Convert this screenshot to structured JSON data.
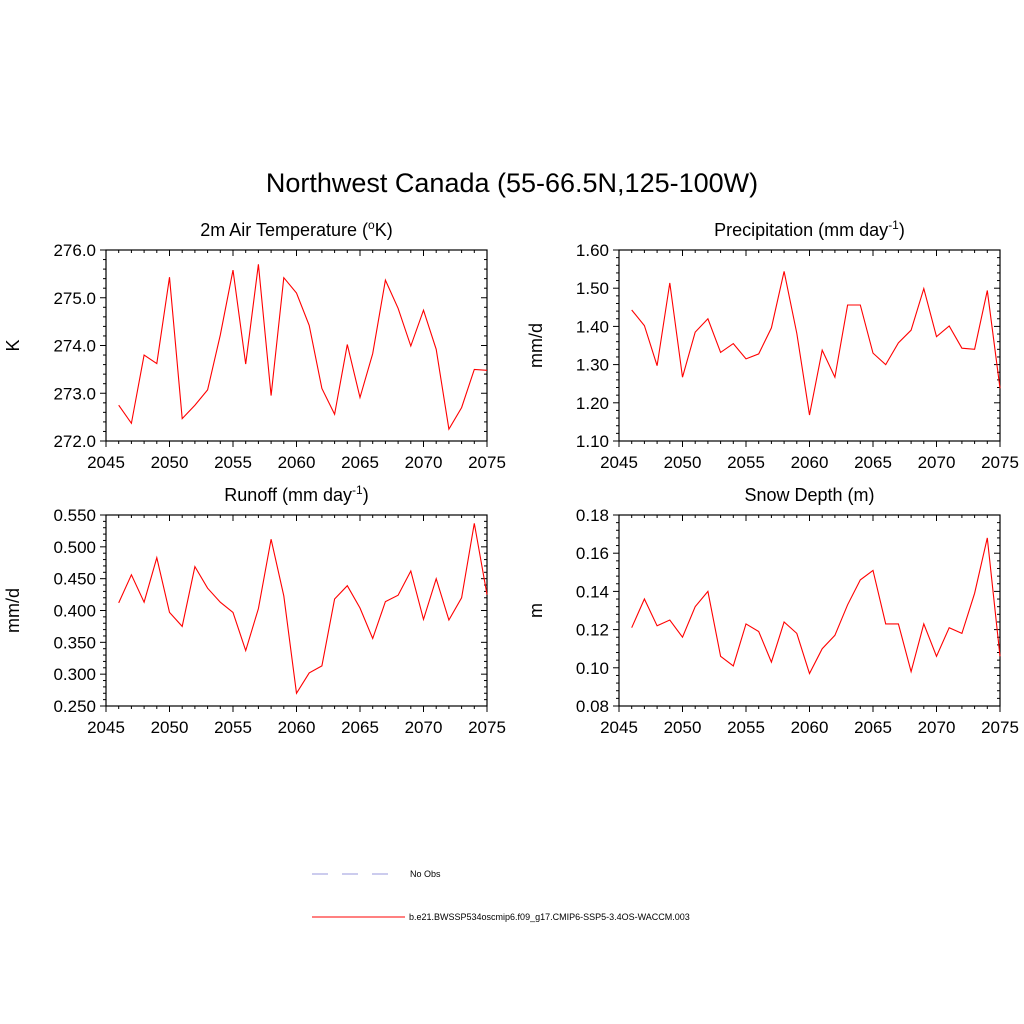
{
  "title": "Northwest Canada (55-66.5N,125-100W)",
  "colors": {
    "series": "#ff0000",
    "obs": "#9999dd",
    "axis": "#000000"
  },
  "legend": [
    {
      "label": "No Obs",
      "style": "dashed",
      "color": "#9999dd"
    },
    {
      "label": "b.e21.BWSSP534oscmip6.f09_g17.CMIP6-SSP5-3.4OS-WACCM.003",
      "style": "solid",
      "color": "#ff0000"
    }
  ],
  "chart_data": [
    {
      "type": "line",
      "title": "2m Air Temperature (°K)",
      "title_base": "2m Air Temperature (",
      "title_sup": "o",
      "title_tail": "K)",
      "ylabel": "K",
      "xlim": [
        2045,
        2075
      ],
      "ylim": [
        272.0,
        276.0
      ],
      "xticks": [
        "2045",
        "2050",
        "2055",
        "2060",
        "2065",
        "2070",
        "2075"
      ],
      "yticks": [
        "272.0",
        "273.0",
        "274.0",
        "275.0",
        "276.0"
      ],
      "x": [
        2046,
        2047,
        2048,
        2049,
        2050,
        2051,
        2052,
        2053,
        2054,
        2055,
        2056,
        2057,
        2058,
        2059,
        2060,
        2061,
        2062,
        2063,
        2064,
        2065,
        2066,
        2067,
        2068,
        2069,
        2070,
        2071,
        2072,
        2073,
        2074,
        2075
      ],
      "series": [
        {
          "values": [
            272.75,
            272.37,
            273.8,
            273.62,
            275.43,
            272.47,
            272.75,
            273.07,
            274.22,
            275.58,
            273.61,
            275.7,
            272.95,
            275.42,
            275.1,
            274.42,
            273.1,
            272.56,
            274.02,
            272.91,
            273.83,
            275.37,
            274.78,
            273.99,
            274.74,
            273.92,
            272.25,
            272.7,
            273.5,
            273.48
          ]
        }
      ]
    },
    {
      "type": "line",
      "title": "Precipitation (mm day-1)",
      "title_base": "Precipitation (mm day",
      "title_sup": "-1",
      "title_tail": ")",
      "ylabel": "mm/d",
      "xlim": [
        2045,
        2075
      ],
      "ylim": [
        1.1,
        1.6
      ],
      "xticks": [
        "2045",
        "2050",
        "2055",
        "2060",
        "2065",
        "2070",
        "2075"
      ],
      "yticks": [
        "1.10",
        "1.20",
        "1.30",
        "1.40",
        "1.50",
        "1.60"
      ],
      "x": [
        2046,
        2047,
        2048,
        2049,
        2050,
        2051,
        2052,
        2053,
        2054,
        2055,
        2056,
        2057,
        2058,
        2059,
        2060,
        2061,
        2062,
        2063,
        2064,
        2065,
        2066,
        2067,
        2068,
        2069,
        2070,
        2071,
        2072,
        2073,
        2074,
        2075
      ],
      "series": [
        {
          "values": [
            1.443,
            1.402,
            1.297,
            1.514,
            1.267,
            1.385,
            1.42,
            1.332,
            1.355,
            1.315,
            1.328,
            1.396,
            1.544,
            1.382,
            1.168,
            1.338,
            1.267,
            1.456,
            1.456,
            1.33,
            1.3,
            1.357,
            1.39,
            1.499,
            1.373,
            1.401,
            1.343,
            1.34,
            1.494,
            1.238
          ]
        }
      ]
    },
    {
      "type": "line",
      "title": "Runoff (mm day-1)",
      "title_base": "Runoff (mm day",
      "title_sup": "-1",
      "title_tail": ")",
      "ylabel": "mm/d",
      "xlim": [
        2045,
        2075
      ],
      "ylim": [
        0.25,
        0.55
      ],
      "xticks": [
        "2045",
        "2050",
        "2055",
        "2060",
        "2065",
        "2070",
        "2075"
      ],
      "yticks": [
        "0.250",
        "0.300",
        "0.350",
        "0.400",
        "0.450",
        "0.500",
        "0.550"
      ],
      "x": [
        2046,
        2047,
        2048,
        2049,
        2050,
        2051,
        2052,
        2053,
        2054,
        2055,
        2056,
        2057,
        2058,
        2059,
        2060,
        2061,
        2062,
        2063,
        2064,
        2065,
        2066,
        2067,
        2068,
        2069,
        2070,
        2071,
        2072,
        2073,
        2074,
        2075
      ],
      "series": [
        {
          "values": [
            0.412,
            0.456,
            0.413,
            0.483,
            0.397,
            0.375,
            0.469,
            0.435,
            0.413,
            0.397,
            0.337,
            0.403,
            0.512,
            0.423,
            0.27,
            0.302,
            0.313,
            0.418,
            0.439,
            0.404,
            0.356,
            0.414,
            0.424,
            0.462,
            0.386,
            0.45,
            0.385,
            0.42,
            0.537,
            0.425
          ]
        }
      ]
    },
    {
      "type": "line",
      "title": "Snow Depth (m)",
      "title_base": "Snow Depth (m)",
      "title_sup": "",
      "title_tail": "",
      "ylabel": "m",
      "xlim": [
        2045,
        2075
      ],
      "ylim": [
        0.08,
        0.18
      ],
      "xticks": [
        "2045",
        "2050",
        "2055",
        "2060",
        "2065",
        "2070",
        "2075"
      ],
      "yticks": [
        "0.08",
        "0.10",
        "0.12",
        "0.14",
        "0.16",
        "0.18"
      ],
      "x": [
        2046,
        2047,
        2048,
        2049,
        2050,
        2051,
        2052,
        2053,
        2054,
        2055,
        2056,
        2057,
        2058,
        2059,
        2060,
        2061,
        2062,
        2063,
        2064,
        2065,
        2066,
        2067,
        2068,
        2069,
        2070,
        2071,
        2072,
        2073,
        2074,
        2075
      ],
      "series": [
        {
          "values": [
            0.121,
            0.136,
            0.122,
            0.125,
            0.116,
            0.132,
            0.14,
            0.106,
            0.101,
            0.123,
            0.119,
            0.103,
            0.124,
            0.118,
            0.097,
            0.11,
            0.117,
            0.133,
            0.146,
            0.151,
            0.123,
            0.123,
            0.098,
            0.123,
            0.106,
            0.121,
            0.118,
            0.139,
            0.168,
            0.106
          ]
        }
      ]
    }
  ]
}
